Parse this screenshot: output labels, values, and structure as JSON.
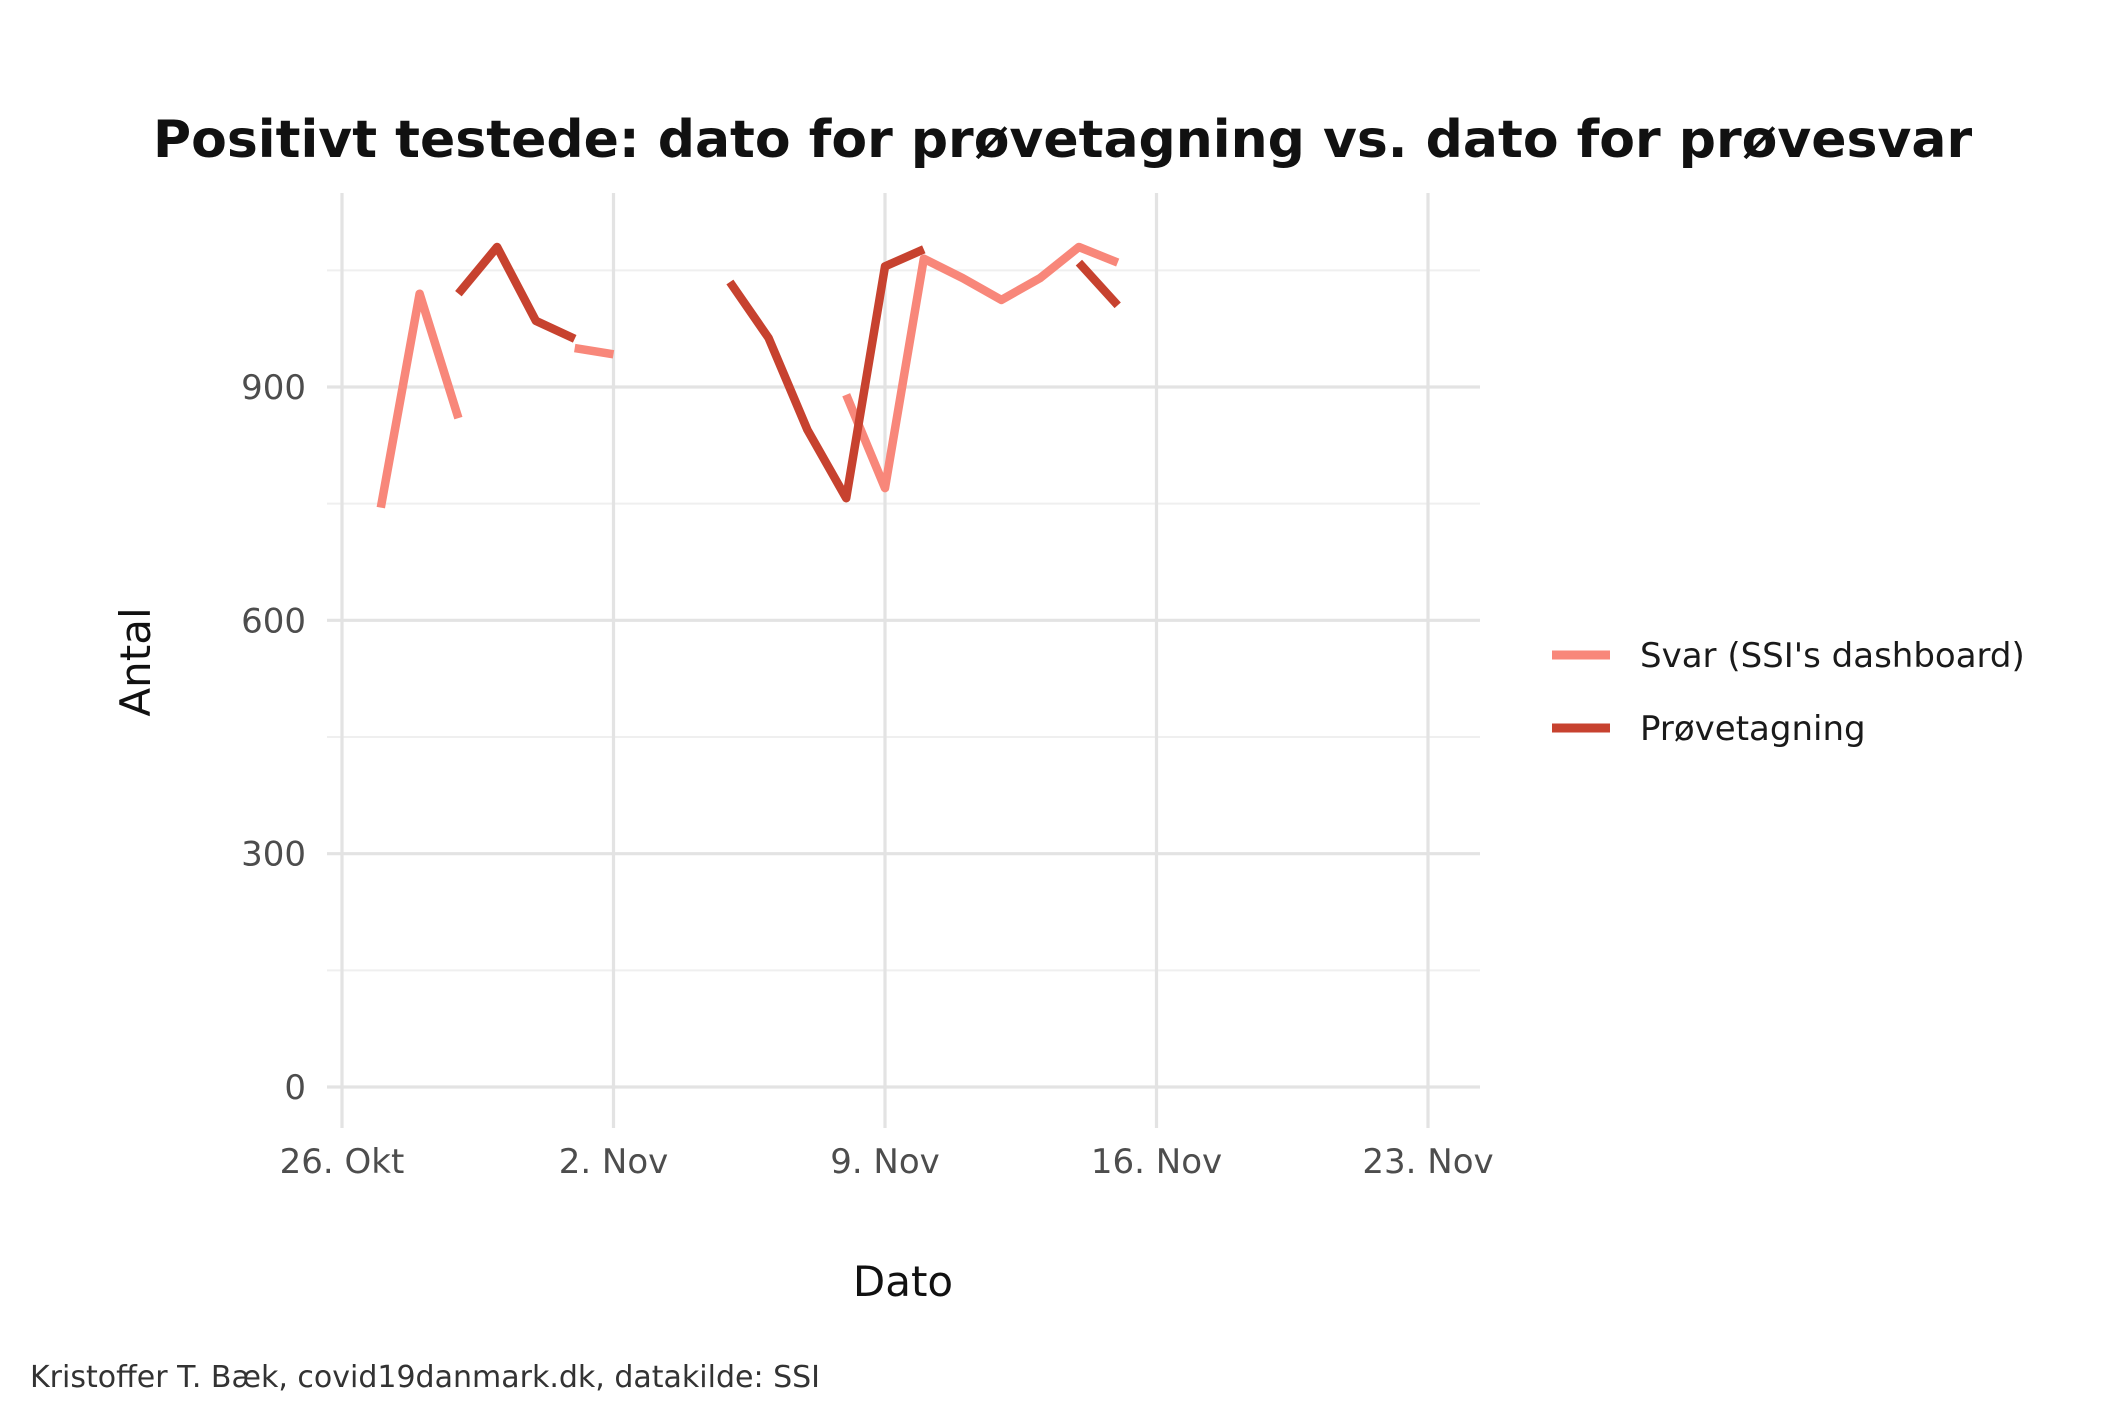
{
  "chart_data": {
    "type": "line",
    "title": "Positivt testede: dato for prøvetagning vs. dato for prøvesvar",
    "xlabel": "Dato",
    "ylabel": "Antal",
    "caption": "Kristoffer T. Bæk, covid19danmark.dk, datakilde: SSI",
    "x_ticks": [
      {
        "date": "2020-10-26",
        "label": "26. Okt"
      },
      {
        "date": "2020-11-02",
        "label": "2. Nov"
      },
      {
        "date": "2020-11-09",
        "label": "9. Nov"
      },
      {
        "date": "2020-11-16",
        "label": "16. Nov"
      },
      {
        "date": "2020-11-23",
        "label": "23. Nov"
      }
    ],
    "xlim": [
      "2020-10-26",
      "2020-11-23"
    ],
    "y_ticks": [
      0,
      300,
      600,
      900
    ],
    "ylim": [
      0,
      1100
    ],
    "grid": true,
    "legend_position": "right",
    "series": [
      {
        "name": "Svar (SSI's dashboard)",
        "color": "#f8877a",
        "values": [
          {
            "date": "2020-10-27",
            "y": 745
          },
          {
            "date": "2020-10-28",
            "y": 1020
          },
          {
            "date": "2020-10-29",
            "y": 860
          },
          {
            "date": "2020-10-30",
            "y": null
          },
          {
            "date": "2020-10-31",
            "y": null
          },
          {
            "date": "2020-11-01",
            "y": 950
          },
          {
            "date": "2020-11-02",
            "y": 942
          },
          {
            "date": "2020-11-03",
            "y": null
          },
          {
            "date": "2020-11-04",
            "y": null
          },
          {
            "date": "2020-11-05",
            "y": null
          },
          {
            "date": "2020-11-06",
            "y": null
          },
          {
            "date": "2020-11-07",
            "y": null
          },
          {
            "date": "2020-11-08",
            "y": 890
          },
          {
            "date": "2020-11-09",
            "y": 770
          },
          {
            "date": "2020-11-10",
            "y": 1065
          },
          {
            "date": "2020-11-11",
            "y": 1040
          },
          {
            "date": "2020-11-12",
            "y": 1012
          },
          {
            "date": "2020-11-13",
            "y": 1040
          },
          {
            "date": "2020-11-14",
            "y": 1080
          },
          {
            "date": "2020-11-15",
            "y": 1060
          }
        ]
      },
      {
        "name": "Prøvetagning",
        "color": "#c7422f",
        "values": [
          {
            "date": "2020-10-29",
            "y": 1020
          },
          {
            "date": "2020-10-30",
            "y": 1080
          },
          {
            "date": "2020-10-31",
            "y": 985
          },
          {
            "date": "2020-11-01",
            "y": 962
          },
          {
            "date": "2020-11-02",
            "y": null
          },
          {
            "date": "2020-11-03",
            "y": null
          },
          {
            "date": "2020-11-04",
            "y": null
          },
          {
            "date": "2020-11-05",
            "y": 1035
          },
          {
            "date": "2020-11-06",
            "y": 963
          },
          {
            "date": "2020-11-07",
            "y": 845
          },
          {
            "date": "2020-11-08",
            "y": 757
          },
          {
            "date": "2020-11-09",
            "y": 1055
          },
          {
            "date": "2020-11-10",
            "y": 1077
          },
          {
            "date": "2020-11-11",
            "y": null
          },
          {
            "date": "2020-11-12",
            "y": null
          },
          {
            "date": "2020-11-13",
            "y": null
          },
          {
            "date": "2020-11-14",
            "y": 1060
          },
          {
            "date": "2020-11-15",
            "y": 1005
          }
        ]
      }
    ]
  }
}
